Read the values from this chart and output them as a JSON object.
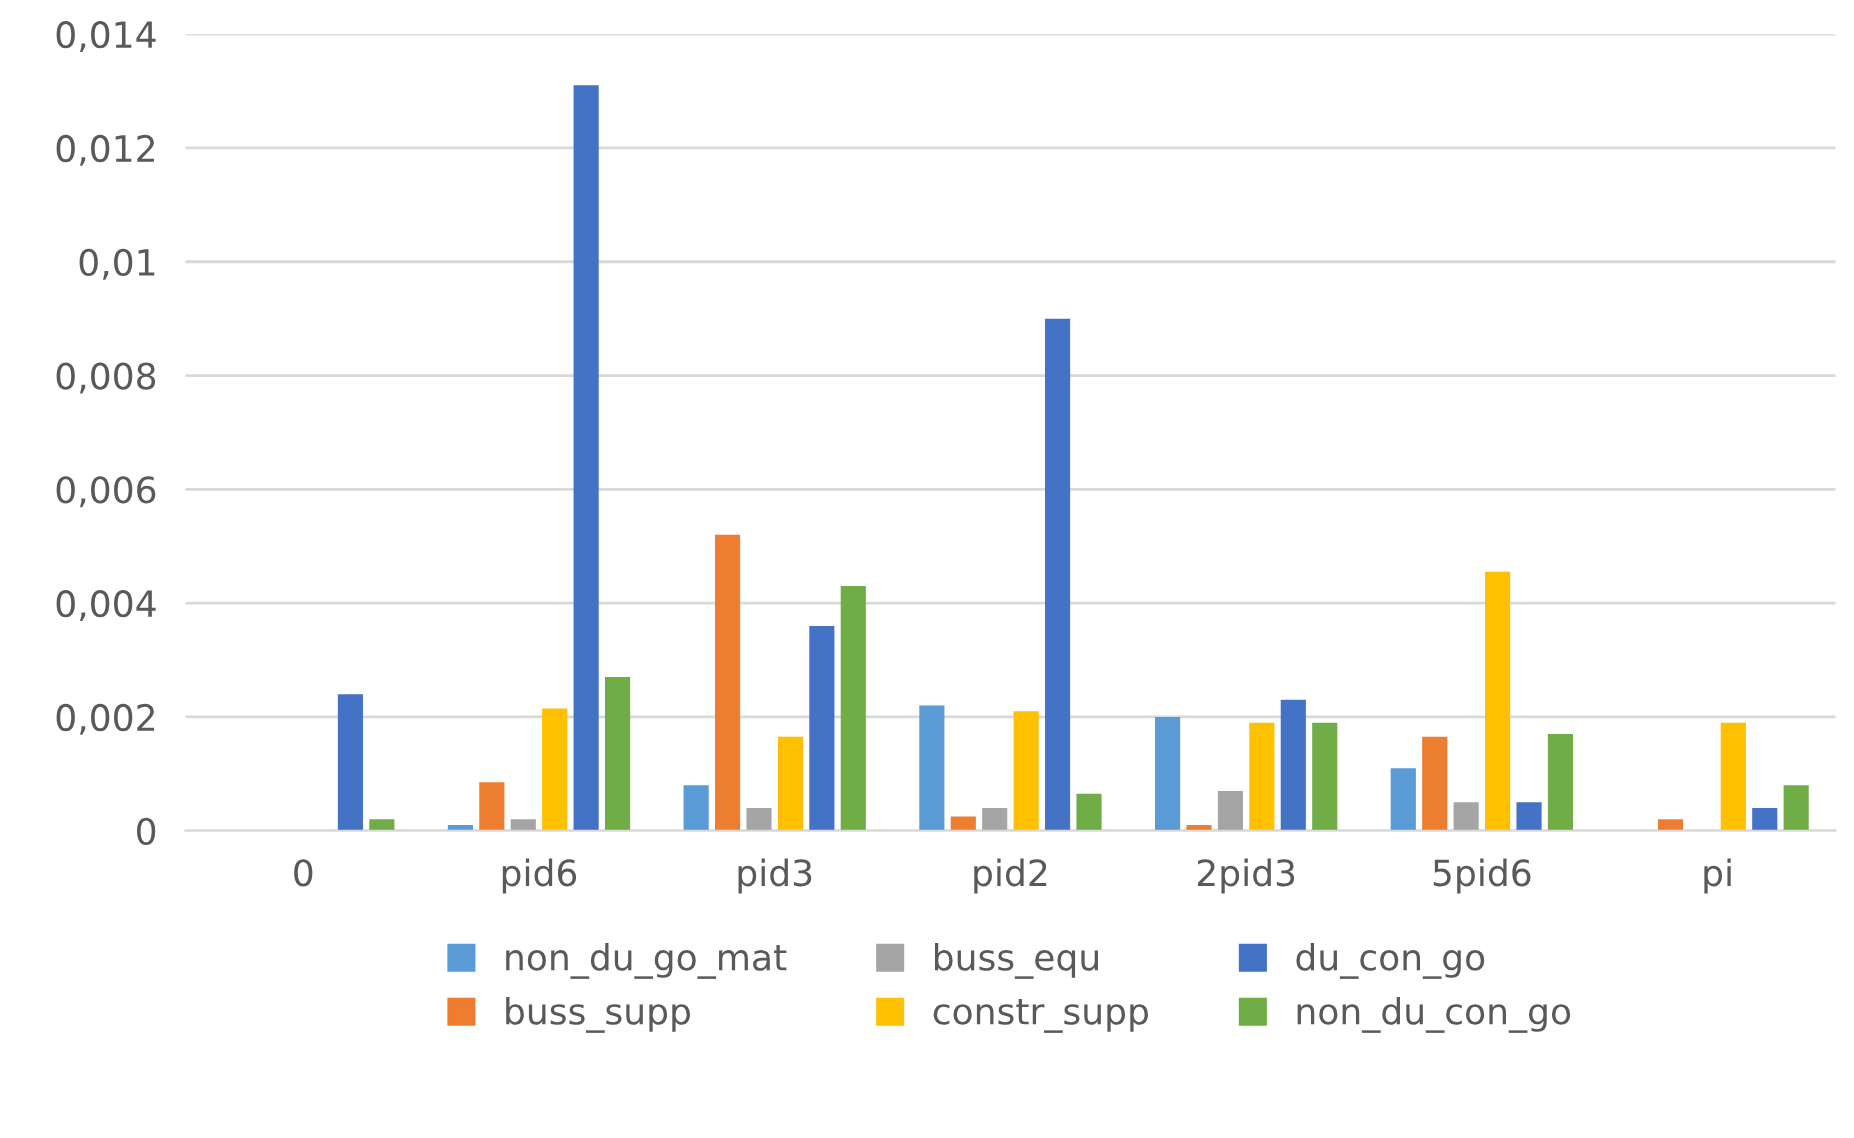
{
  "chart_data": {
    "type": "bar",
    "categories": [
      "0",
      "pid6",
      "pid3",
      "pid2",
      "2pid3",
      "5pid6",
      "pi"
    ],
    "series": [
      {
        "name": "non_du_go_mat",
        "color": "#5b9bd5",
        "values": [
          0,
          0.0001,
          0.0008,
          0.0022,
          0.002,
          0.0011,
          0
        ]
      },
      {
        "name": "buss_supp",
        "color": "#ed7d31",
        "values": [
          0,
          0.00085,
          0.0052,
          0.00025,
          0.0001,
          0.00165,
          0.0002
        ]
      },
      {
        "name": "buss_equ",
        "color": "#a5a5a5",
        "values": [
          0,
          0.0002,
          0.0004,
          0.0004,
          0.0007,
          0.0005,
          0
        ]
      },
      {
        "name": "constr_supp",
        "color": "#ffc000",
        "values": [
          0,
          0.00215,
          0.00165,
          0.0021,
          0.0019,
          0.00455,
          0.0019
        ]
      },
      {
        "name": "du_con_go",
        "color": "#4472c4",
        "values": [
          0.0024,
          0.0131,
          0.0036,
          0.009,
          0.0023,
          0.0005,
          0.0004
        ]
      },
      {
        "name": "non_du_con_go",
        "color": "#70ad47",
        "values": [
          0.0002,
          0.0027,
          0.0043,
          0.00065,
          0.0019,
          0.0017,
          0.0008
        ]
      }
    ],
    "ylim": [
      0,
      0.014
    ],
    "yticks": [
      {
        "value": 0,
        "label": "0"
      },
      {
        "value": 0.002,
        "label": "0,002"
      },
      {
        "value": 0.004,
        "label": "0,004"
      },
      {
        "value": 0.006,
        "label": "0,006"
      },
      {
        "value": 0.008,
        "label": "0,008"
      },
      {
        "value": 0.01,
        "label": "0,01"
      },
      {
        "value": 0.012,
        "label": "0,012"
      },
      {
        "value": 0.014,
        "label": "0,014"
      }
    ],
    "grid": "y",
    "legend": "bottom"
  }
}
